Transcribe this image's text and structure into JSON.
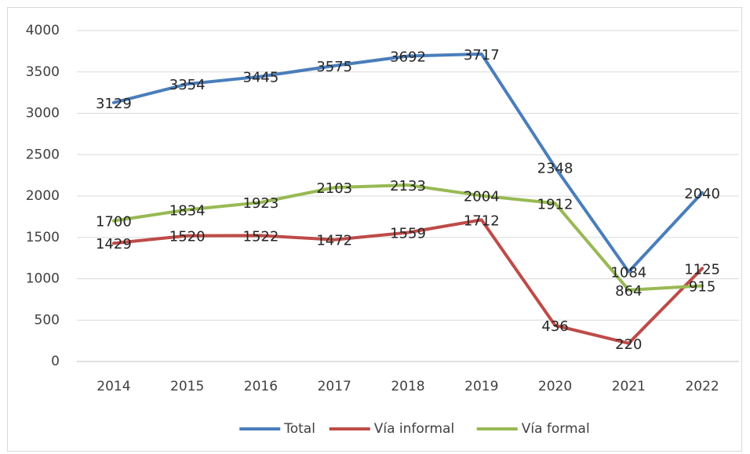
{
  "chart_data": {
    "type": "line",
    "categories": [
      "2014",
      "2015",
      "2016",
      "2017",
      "2018",
      "2019",
      "2020",
      "2021",
      "2022"
    ],
    "series": [
      {
        "name": "Total",
        "color": "#4a7ebb",
        "values": [
          3129,
          3354,
          3445,
          3575,
          3692,
          3717,
          2348,
          1084,
          2040
        ]
      },
      {
        "name": "Vía informal",
        "color": "#be4b48",
        "values": [
          1429,
          1520,
          1522,
          1472,
          1559,
          1712,
          436,
          220,
          1125
        ]
      },
      {
        "name": "Vía formal",
        "color": "#98b954",
        "values": [
          1700,
          1834,
          1923,
          2103,
          2133,
          2004,
          1912,
          864,
          915
        ]
      }
    ],
    "ylim": [
      0,
      4000
    ],
    "yticks": [
      0,
      500,
      1000,
      1500,
      2000,
      2500,
      3000,
      3500,
      4000
    ],
    "grid": true,
    "legend": "bottom"
  }
}
